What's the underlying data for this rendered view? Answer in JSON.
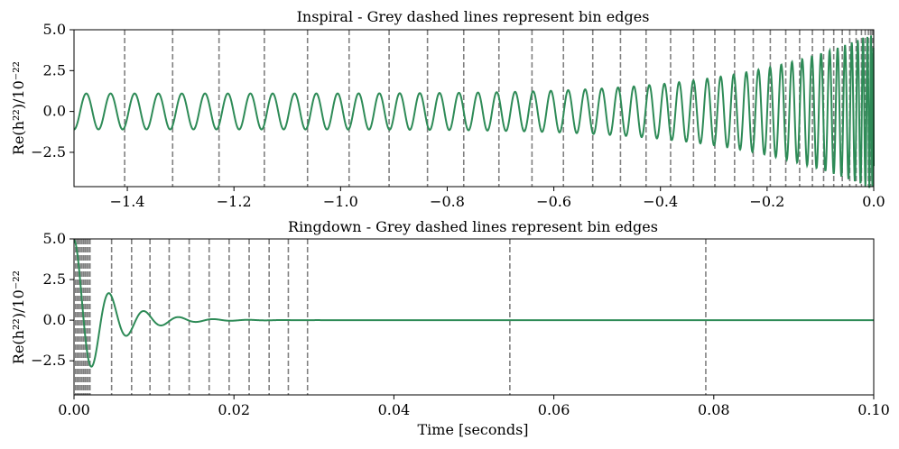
{
  "colors": {
    "signal": "#2e8b57",
    "bin_edge": "#808080",
    "axes": "#000000"
  },
  "chart_data": [
    {
      "type": "line",
      "title": "Inspiral - Grey dashed lines represent bin edges",
      "ylabel": "Re(h²²)/10⁻²²",
      "xlabel": "",
      "xlim": [
        -1.5,
        0.0
      ],
      "ylim": [
        -4.6,
        5.0
      ],
      "xticks": [
        -1.4,
        -1.2,
        -1.0,
        -0.8,
        -0.6,
        -0.4,
        -0.2,
        0.0
      ],
      "xtick_labels": [
        "−1.4",
        "−1.2",
        "−1.0",
        "−0.8",
        "−0.6",
        "−0.4",
        "−0.2",
        "0.0"
      ],
      "yticks": [
        -2.5,
        0.0,
        2.5,
        5.0
      ],
      "ytick_labels": [
        "−2.5",
        "0.0",
        "2.5",
        "5.0"
      ],
      "grid": false,
      "series": [
        {
          "kind": "chirp",
          "t_c": 0.0,
          "t_start": -1.5,
          "cycles": 52,
          "amp_start": 1.1,
          "amp_end": 4.8,
          "phase_power": 0.625
        }
      ],
      "bin_edges": [
        -1.405,
        -1.315,
        -1.228,
        -1.143,
        -1.062,
        -0.984,
        -0.909,
        -0.837,
        -0.769,
        -0.703,
        -0.641,
        -0.582,
        -0.527,
        -0.475,
        -0.427,
        -0.381,
        -0.338,
        -0.298,
        -0.261,
        -0.226,
        -0.194,
        -0.165,
        -0.139,
        -0.115,
        -0.094,
        -0.075,
        -0.059,
        -0.045,
        -0.033,
        -0.023,
        -0.016,
        -0.01,
        -0.006,
        -0.003,
        -0.0015,
        -0.0005
      ]
    },
    {
      "type": "line",
      "title": "Ringdown - Grey dashed lines represent bin edges",
      "ylabel": "Re(h²²)/10⁻²²",
      "xlabel": "Time [seconds]",
      "xlim": [
        0.0,
        0.1
      ],
      "ylim": [
        -4.6,
        5.0
      ],
      "xticks": [
        0.0,
        0.02,
        0.04,
        0.06,
        0.08,
        0.1
      ],
      "xtick_labels": [
        "0.00",
        "0.02",
        "0.04",
        "0.06",
        "0.08",
        "0.10"
      ],
      "yticks": [
        -2.5,
        0.0,
        2.5,
        5.0
      ],
      "ytick_labels": [
        "−2.5",
        "0.0",
        "2.5",
        "5.0"
      ],
      "grid": false,
      "series": [
        {
          "kind": "damped_sine",
          "amp": 5.0,
          "tau": 0.004,
          "freq": 230,
          "phase": 1.4
        }
      ],
      "bin_edges": [
        0.0002,
        0.0004,
        0.0006,
        0.0008,
        0.001,
        0.0012,
        0.0014,
        0.0016,
        0.0018,
        0.002,
        0.0047,
        0.0072,
        0.0095,
        0.0119,
        0.0144,
        0.0169,
        0.0194,
        0.0219,
        0.0244,
        0.0268,
        0.0292,
        0.0545,
        0.079
      ]
    }
  ]
}
